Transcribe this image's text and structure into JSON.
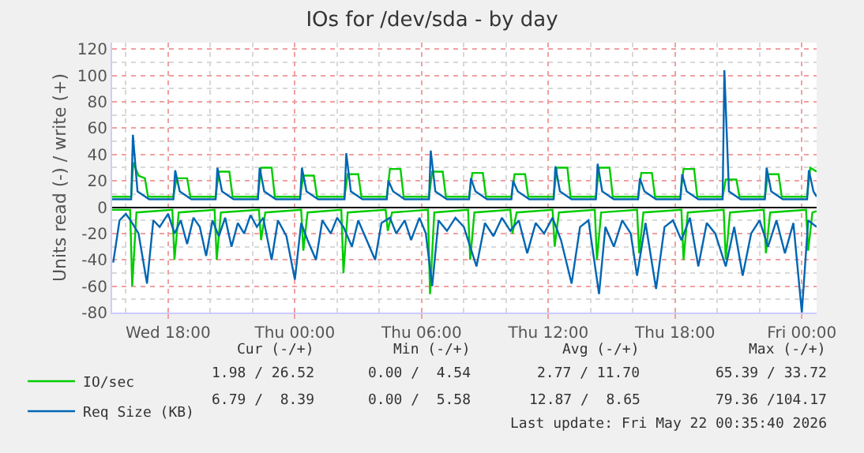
{
  "chart_data": {
    "type": "line",
    "title": "IOs for /dev/sda - by day",
    "ylabel": "Units read (-) / write (+)",
    "xlim": [
      "2026-05-20T15:21",
      "2026-05-22T00:42"
    ],
    "xticks": [
      {
        "value": "2026-05-20T18:00",
        "label": "Wed 18:00"
      },
      {
        "value": "2026-05-21T00:00",
        "label": "Thu 00:00"
      },
      {
        "value": "2026-05-21T06:00",
        "label": "Thu 06:00"
      },
      {
        "value": "2026-05-21T12:00",
        "label": "Thu 12:00"
      },
      {
        "value": "2026-05-21T18:00",
        "label": "Thu 18:00"
      },
      {
        "value": "2026-05-22T00:00",
        "label": "Fri 00:00"
      }
    ],
    "ylim": [
      -80,
      125
    ],
    "yticks": [
      -80,
      -60,
      -40,
      -20,
      0,
      20,
      40,
      60,
      80,
      100,
      120
    ],
    "grid": true,
    "legend": "bottom left",
    "series": [
      {
        "name": "IO/sec",
        "color": "#00cc00",
        "x": [
          "2026-05-20T15:21",
          "2026-05-20T16:15",
          "2026-05-20T16:21",
          "2026-05-20T16:36",
          "2026-05-20T16:54",
          "2026-05-20T17:03",
          "2026-05-20T18:15",
          "2026-05-20T18:24",
          "2026-05-20T18:54",
          "2026-05-20T19:03",
          "2026-05-20T20:15",
          "2026-05-20T20:24",
          "2026-05-20T20:54",
          "2026-05-20T21:03",
          "2026-05-20T22:15",
          "2026-05-20T22:24",
          "2026-05-20T22:54",
          "2026-05-20T23:03",
          "2026-05-21T00:15",
          "2026-05-21T00:24",
          "2026-05-21T00:54",
          "2026-05-21T01:03",
          "2026-05-21T02:21",
          "2026-05-21T02:30",
          "2026-05-21T03:00",
          "2026-05-21T03:09",
          "2026-05-21T04:21",
          "2026-05-21T04:30",
          "2026-05-21T05:00",
          "2026-05-21T05:09",
          "2026-05-21T06:21",
          "2026-05-21T06:30",
          "2026-05-21T07:00",
          "2026-05-21T07:09",
          "2026-05-21T08:15",
          "2026-05-21T08:24",
          "2026-05-21T08:54",
          "2026-05-21T09:03",
          "2026-05-21T10:15",
          "2026-05-21T10:24",
          "2026-05-21T10:54",
          "2026-05-21T11:03",
          "2026-05-21T12:15",
          "2026-05-21T12:24",
          "2026-05-21T12:54",
          "2026-05-21T13:03",
          "2026-05-21T14:15",
          "2026-05-21T14:24",
          "2026-05-21T14:54",
          "2026-05-21T15:03",
          "2026-05-21T16:15",
          "2026-05-21T16:24",
          "2026-05-21T16:54",
          "2026-05-21T17:03",
          "2026-05-21T18:15",
          "2026-05-21T18:24",
          "2026-05-21T18:54",
          "2026-05-21T19:03",
          "2026-05-21T20:15",
          "2026-05-21T20:24",
          "2026-05-21T20:54",
          "2026-05-21T21:03",
          "2026-05-21T22:15",
          "2026-05-21T22:24",
          "2026-05-21T22:54",
          "2026-05-21T23:03",
          "2026-05-22T00:15",
          "2026-05-22T00:24",
          "2026-05-22T00:42"
        ],
        "values": [
          8,
          8,
          34,
          24,
          22,
          8,
          8,
          22,
          22,
          8,
          8,
          27,
          27,
          8,
          8,
          30,
          30,
          8,
          8,
          24,
          24,
          8,
          8,
          25,
          25,
          8,
          8,
          29,
          29,
          8,
          8,
          27,
          27,
          8,
          8,
          26,
          26,
          8,
          8,
          25,
          25,
          8,
          8,
          30,
          30,
          8,
          8,
          30,
          30,
          8,
          8,
          26,
          26,
          8,
          8,
          29,
          29,
          8,
          8,
          21,
          21,
          8,
          8,
          25,
          25,
          8,
          8,
          30,
          27
        ]
      },
      {
        "color": "#00cc00",
        "x": [
          "2026-05-20T15:21",
          "2026-05-20T16:12",
          "2026-05-20T16:18",
          "2026-05-20T16:30",
          "2026-05-20T18:12",
          "2026-05-20T18:18",
          "2026-05-20T18:30",
          "2026-05-20T20:12",
          "2026-05-20T20:18",
          "2026-05-20T20:30",
          "2026-05-20T22:18",
          "2026-05-20T22:24",
          "2026-05-20T22:36",
          "2026-05-21T00:18",
          "2026-05-21T00:24",
          "2026-05-21T00:36",
          "2026-05-21T02:12",
          "2026-05-21T02:18",
          "2026-05-21T02:30",
          "2026-05-21T04:18",
          "2026-05-21T04:24",
          "2026-05-21T04:36",
          "2026-05-21T06:18",
          "2026-05-21T06:24",
          "2026-05-21T06:36",
          "2026-05-21T08:12",
          "2026-05-21T08:18",
          "2026-05-21T08:30",
          "2026-05-21T10:12",
          "2026-05-21T10:18",
          "2026-05-21T10:30",
          "2026-05-21T12:12",
          "2026-05-21T12:18",
          "2026-05-21T12:30",
          "2026-05-21T14:12",
          "2026-05-21T14:18",
          "2026-05-21T14:30",
          "2026-05-21T16:12",
          "2026-05-21T16:18",
          "2026-05-21T16:30",
          "2026-05-21T18:18",
          "2026-05-21T18:24",
          "2026-05-21T18:36",
          "2026-05-21T20:18",
          "2026-05-21T20:24",
          "2026-05-21T20:36",
          "2026-05-21T22:12",
          "2026-05-21T22:18",
          "2026-05-21T22:30",
          "2026-05-22T00:12",
          "2026-05-22T00:18",
          "2026-05-22T00:30",
          "2026-05-22T00:42"
        ],
        "values": [
          -2,
          -2,
          -60,
          -4,
          -2,
          -40,
          -4,
          -2,
          -40,
          -4,
          -2,
          -25,
          -4,
          -2,
          -33,
          -4,
          -2,
          -50,
          -4,
          -2,
          -18,
          -4,
          -2,
          -66,
          -4,
          -2,
          -40,
          -4,
          -2,
          -20,
          -4,
          -2,
          -30,
          -4,
          -2,
          -40,
          -4,
          -2,
          -35,
          -4,
          -2,
          -40,
          -4,
          -2,
          -40,
          -4,
          -2,
          -35,
          -4,
          -2,
          -33,
          -4,
          -3
        ]
      },
      {
        "name": "Req Size (KB)",
        "color": "#0066b3",
        "x": [
          "2026-05-20T15:21",
          "2026-05-20T16:15",
          "2026-05-20T16:20",
          "2026-05-20T16:33",
          "2026-05-20T17:06",
          "2026-05-20T18:15",
          "2026-05-20T18:20",
          "2026-05-20T18:33",
          "2026-05-20T19:06",
          "2026-05-20T20:15",
          "2026-05-20T20:20",
          "2026-05-20T20:33",
          "2026-05-20T21:06",
          "2026-05-20T22:15",
          "2026-05-20T22:20",
          "2026-05-20T22:33",
          "2026-05-20T23:06",
          "2026-05-21T00:15",
          "2026-05-21T00:20",
          "2026-05-21T00:33",
          "2026-05-21T01:06",
          "2026-05-21T02:21",
          "2026-05-21T02:26",
          "2026-05-21T02:39",
          "2026-05-21T03:12",
          "2026-05-21T04:21",
          "2026-05-21T04:26",
          "2026-05-21T04:39",
          "2026-05-21T05:12",
          "2026-05-21T06:21",
          "2026-05-21T06:26",
          "2026-05-21T06:39",
          "2026-05-21T07:12",
          "2026-05-21T08:15",
          "2026-05-21T08:20",
          "2026-05-21T08:33",
          "2026-05-21T09:06",
          "2026-05-21T10:15",
          "2026-05-21T10:20",
          "2026-05-21T10:33",
          "2026-05-21T11:06",
          "2026-05-21T12:15",
          "2026-05-21T12:20",
          "2026-05-21T12:33",
          "2026-05-21T13:06",
          "2026-05-21T14:15",
          "2026-05-21T14:20",
          "2026-05-21T14:33",
          "2026-05-21T15:06",
          "2026-05-21T16:15",
          "2026-05-21T16:20",
          "2026-05-21T16:33",
          "2026-05-21T17:06",
          "2026-05-21T18:15",
          "2026-05-21T18:20",
          "2026-05-21T18:33",
          "2026-05-21T19:06",
          "2026-05-21T20:15",
          "2026-05-21T20:20",
          "2026-05-21T20:33",
          "2026-05-21T21:06",
          "2026-05-21T22:15",
          "2026-05-21T22:20",
          "2026-05-21T22:33",
          "2026-05-21T23:06",
          "2026-05-22T00:15",
          "2026-05-22T00:20",
          "2026-05-22T00:33",
          "2026-05-22T00:42"
        ],
        "values": [
          6,
          6,
          55,
          12,
          6,
          6,
          28,
          12,
          6,
          6,
          30,
          12,
          6,
          6,
          30,
          12,
          6,
          6,
          30,
          12,
          6,
          6,
          41,
          12,
          6,
          6,
          20,
          12,
          6,
          6,
          43,
          12,
          6,
          6,
          22,
          12,
          6,
          6,
          20,
          12,
          6,
          6,
          31,
          12,
          6,
          6,
          33,
          12,
          6,
          6,
          22,
          12,
          6,
          6,
          25,
          12,
          6,
          6,
          104,
          12,
          6,
          6,
          30,
          12,
          6,
          6,
          28,
          12,
          8
        ]
      },
      {
        "color": "#0066b3",
        "x": [
          "2026-05-20T15:24",
          "2026-05-20T15:42",
          "2026-05-20T16:00",
          "2026-05-20T16:18",
          "2026-05-20T16:36",
          "2026-05-20T17:00",
          "2026-05-20T17:18",
          "2026-05-20T17:36",
          "2026-05-20T18:00",
          "2026-05-20T18:18",
          "2026-05-20T18:36",
          "2026-05-20T18:54",
          "2026-05-20T19:12",
          "2026-05-20T19:30",
          "2026-05-20T19:48",
          "2026-05-20T20:06",
          "2026-05-20T20:24",
          "2026-05-20T20:42",
          "2026-05-20T21:00",
          "2026-05-20T21:18",
          "2026-05-20T21:36",
          "2026-05-20T21:54",
          "2026-05-20T22:12",
          "2026-05-20T22:30",
          "2026-05-20T22:54",
          "2026-05-20T23:12",
          "2026-05-20T23:36",
          "2026-05-21T00:00",
          "2026-05-21T00:18",
          "2026-05-21T00:36",
          "2026-05-21T01:00",
          "2026-05-21T01:18",
          "2026-05-21T01:42",
          "2026-05-21T02:00",
          "2026-05-21T02:18",
          "2026-05-21T02:42",
          "2026-05-21T03:00",
          "2026-05-21T03:24",
          "2026-05-21T03:48",
          "2026-05-21T04:06",
          "2026-05-21T04:30",
          "2026-05-21T04:48",
          "2026-05-21T05:12",
          "2026-05-21T05:30",
          "2026-05-21T05:54",
          "2026-05-21T06:12",
          "2026-05-21T06:30",
          "2026-05-21T06:48",
          "2026-05-21T07:12",
          "2026-05-21T07:36",
          "2026-05-21T08:00",
          "2026-05-21T08:36",
          "2026-05-21T09:00",
          "2026-05-21T09:24",
          "2026-05-21T09:48",
          "2026-05-21T10:12",
          "2026-05-21T10:36",
          "2026-05-21T11:00",
          "2026-05-21T11:24",
          "2026-05-21T11:48",
          "2026-05-21T12:12",
          "2026-05-21T12:36",
          "2026-05-21T13:06",
          "2026-05-21T13:30",
          "2026-05-21T13:54",
          "2026-05-21T14:24",
          "2026-05-21T14:42",
          "2026-05-21T15:06",
          "2026-05-21T15:30",
          "2026-05-21T15:54",
          "2026-05-21T16:12",
          "2026-05-21T16:36",
          "2026-05-21T17:06",
          "2026-05-21T17:30",
          "2026-05-21T17:54",
          "2026-05-21T18:18",
          "2026-05-21T18:42",
          "2026-05-21T19:06",
          "2026-05-21T19:30",
          "2026-05-21T19:54",
          "2026-05-21T20:24",
          "2026-05-21T20:48",
          "2026-05-21T21:12",
          "2026-05-21T21:36",
          "2026-05-21T22:00",
          "2026-05-21T22:24",
          "2026-05-21T22:48",
          "2026-05-21T23:12",
          "2026-05-21T23:36",
          "2026-05-22T00:00",
          "2026-05-22T00:18",
          "2026-05-22T00:42"
        ],
        "values": [
          -42,
          -10,
          -5,
          -12,
          -20,
          -58,
          -10,
          -15,
          -5,
          -20,
          -10,
          -28,
          -8,
          -15,
          -37,
          -10,
          -22,
          -8,
          -30,
          -12,
          -20,
          -6,
          -15,
          -8,
          -40,
          -10,
          -22,
          -55,
          -12,
          -25,
          -40,
          -10,
          -20,
          -8,
          -15,
          -30,
          -10,
          -25,
          -40,
          -12,
          -8,
          -20,
          -10,
          -25,
          -8,
          -20,
          -60,
          -10,
          -18,
          -8,
          -15,
          -45,
          -12,
          -22,
          -8,
          -18,
          -10,
          -35,
          -12,
          -20,
          -8,
          -25,
          -58,
          -15,
          -10,
          -66,
          -15,
          -30,
          -10,
          -20,
          -52,
          -12,
          -62,
          -15,
          -10,
          -25,
          -8,
          -45,
          -12,
          -20,
          -45,
          -15,
          -52,
          -20,
          -10,
          -30,
          -10,
          -35,
          -12,
          -80,
          -10,
          -15
        ]
      }
    ],
    "annotations": [
      "Cur (-/+)",
      "Min (-/+)",
      "Avg (-/+)",
      "Max (-/+)",
      "1.98 / 26.52",
      "0.00 /  4.54",
      "2.77 / 11.70",
      "65.39 / 33.72",
      "6.79 /  8.39",
      "0.00 /  5.58",
      "12.87 /  8.65",
      "79.36 /104.17",
      "Last update: Fri May 22 00:35:40 2026"
    ]
  }
}
